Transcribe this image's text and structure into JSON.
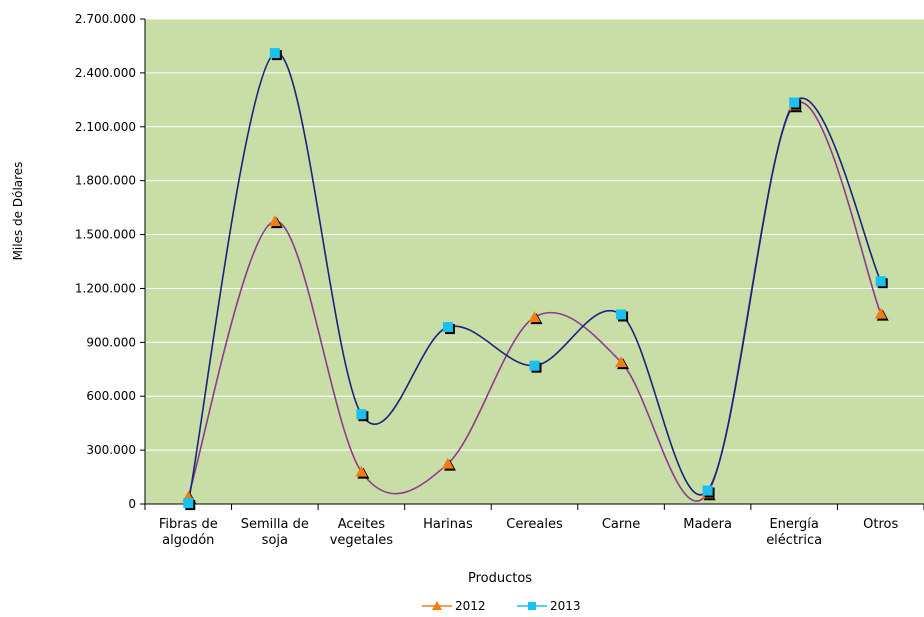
{
  "chart_data": {
    "type": "line",
    "title": "",
    "xlabel": "Productos",
    "ylabel": "Miles de Dólares",
    "categories": [
      [
        "Fibras de",
        "algodón"
      ],
      [
        "Semilla de",
        "soja"
      ],
      [
        "Aceites",
        "vegetales"
      ],
      [
        "Harinas"
      ],
      [
        "Cereales"
      ],
      [
        "Carne"
      ],
      [
        "Madera"
      ],
      [
        "Energía",
        "eléctrica"
      ],
      [
        "Otros"
      ]
    ],
    "y_ticks": [
      "0",
      "300.000",
      "600.000",
      "900.000",
      "1.200.000",
      "1.500.000",
      "1.800.000",
      "2.100.000",
      "2.400.000",
      "2.700.000"
    ],
    "ylim": [
      0,
      2700000
    ],
    "grid": true,
    "legend_position": "bottom",
    "series": [
      {
        "name": "2012",
        "values": [
          40000,
          1575000,
          180000,
          225000,
          1040000,
          790000,
          60000,
          2220000,
          1060000
        ],
        "marker": "triangle",
        "marker_color": "#f27d14",
        "line_color": "#8e3a8e"
      },
      {
        "name": "2013",
        "values": [
          5000,
          2510000,
          500000,
          985000,
          770000,
          1055000,
          75000,
          2235000,
          1240000
        ],
        "marker": "square",
        "marker_color": "#19c1f1",
        "line_color": "#1a237e"
      }
    ],
    "colors": {
      "plot_background": "#c8dea6",
      "gridline": "#ffffff"
    }
  }
}
